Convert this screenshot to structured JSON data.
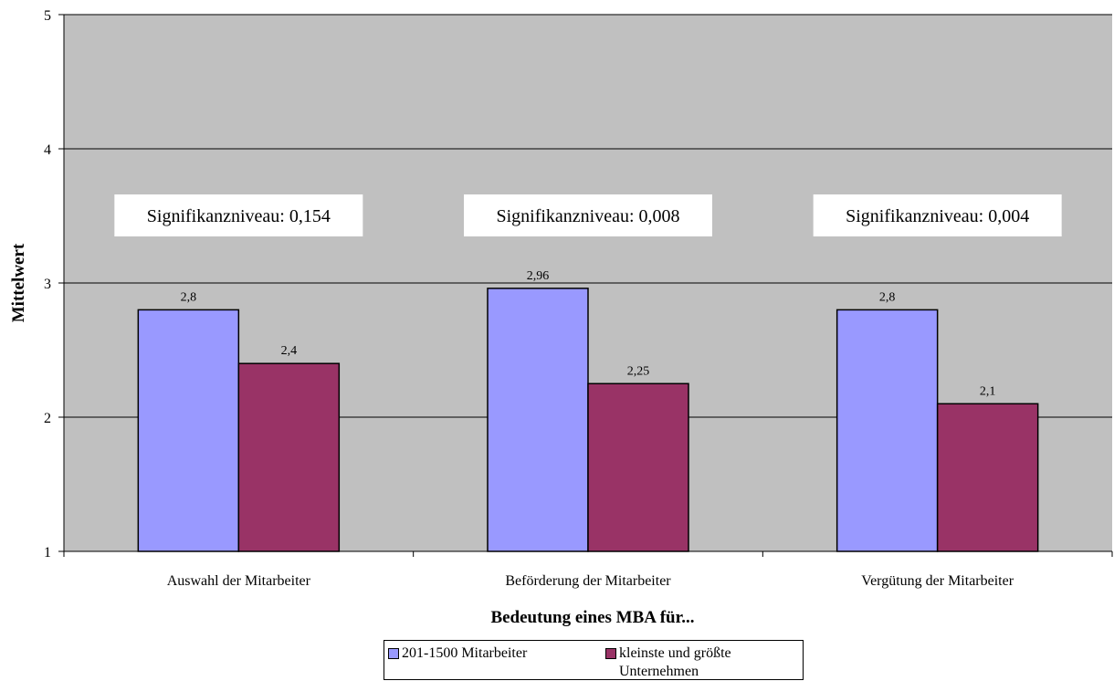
{
  "chart_data": {
    "type": "bar",
    "categories": [
      "Auswahl der Mitarbeiter",
      "Beförderung der Mitarbeiter",
      "Vergütung der Mitarbeiter"
    ],
    "series": [
      {
        "name": "201-1500 Mitarbeiter",
        "color": "#9999ff",
        "values": [
          2.8,
          2.96,
          2.8
        ],
        "labels": [
          "2,8",
          "2,96",
          "2,8"
        ]
      },
      {
        "name": "kleinste und größte Unternehmen",
        "color": "#993366",
        "values": [
          2.4,
          2.25,
          2.1
        ],
        "labels": [
          "2,4",
          "2,25",
          "2,1"
        ]
      }
    ],
    "annotations": [
      "Signifikanzniveau: 0,154",
      "Signifikanzniveau: 0,008",
      "Signifikanzniveau: 0,004"
    ],
    "xlabel": "Bedeutung eines MBA für...",
    "ylabel": "Mittelwert",
    "ylim": [
      1,
      5
    ],
    "yticks": [
      1,
      2,
      3,
      4,
      5
    ],
    "grid": true,
    "plot_background": "#c0c0c0",
    "legend_position": "bottom"
  }
}
